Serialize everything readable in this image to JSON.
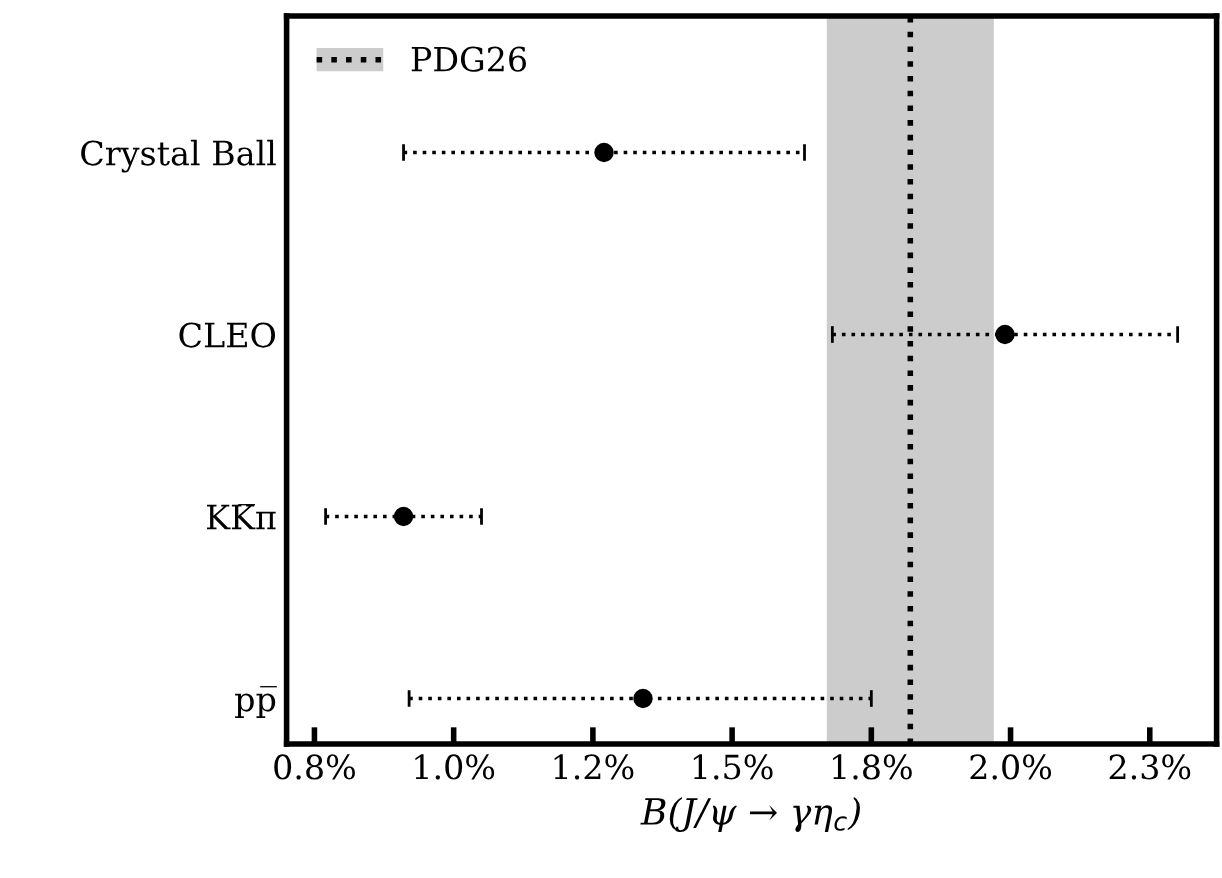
{
  "chart_data": {
    "type": "scatter",
    "orientation": "horizontal",
    "xlabel": "B(J/ψ → γη$_{c}$)",
    "categories": [
      "Crystal Ball",
      "CLEO",
      "KK̅π",
      "pp̅"
    ],
    "series": [
      {
        "color": "#000000",
        "values": [
          1.27,
          1.99,
          0.91,
          1.34
        ],
        "errors": [
          [
            0.91,
            1.63
          ],
          [
            1.68,
            2.3
          ],
          [
            0.77,
            1.05
          ],
          [
            0.92,
            1.75
          ]
        ]
      }
    ],
    "marker": "circle",
    "line_style": "dotted",
    "xlim": [
      0.7,
      2.37
    ],
    "xticks": [
      {
        "value": 0.75,
        "label": "0.8%"
      },
      {
        "value": 1.0,
        "label": "1.0%"
      },
      {
        "value": 1.25,
        "label": "1.2%"
      },
      {
        "value": 1.5,
        "label": "1.5%"
      },
      {
        "value": 1.75,
        "label": "1.8%"
      },
      {
        "value": 2.0,
        "label": "2.0%"
      },
      {
        "value": 2.25,
        "label": "2.3%"
      }
    ],
    "ref_lines": [
      {
        "axis": "x",
        "value": 1.82,
        "label": "PDG26",
        "color": "#000000",
        "line_style": "dotted"
      }
    ],
    "bands": [
      {
        "axis": "x",
        "from": 1.67,
        "to": 1.97,
        "color": "#cccccc"
      }
    ],
    "grid": false,
    "legend": "top left"
  }
}
